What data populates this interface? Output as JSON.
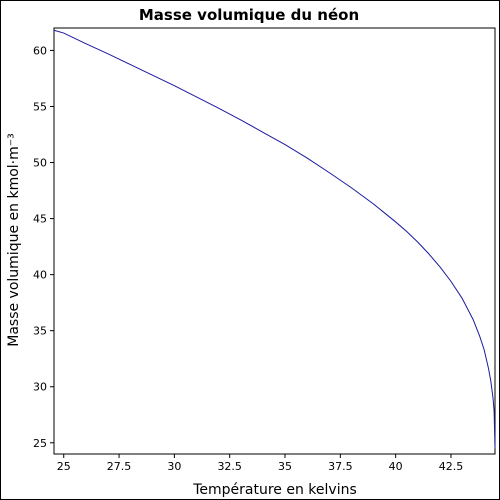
{
  "chart_data": {
    "type": "line",
    "title": "Masse volumique du néon",
    "xlabel": "Température en kelvins",
    "ylabel": "Masse volumique en kmol·m⁻³",
    "xlim": [
      24.56,
      44.49
    ],
    "ylim": [
      24.0,
      62.0
    ],
    "xticks": [
      25,
      27.5,
      30,
      32.5,
      35,
      37.5,
      40,
      42.5
    ],
    "xtick_labels": [
      "25",
      "27.5",
      "30",
      "32.5",
      "35",
      "37.5",
      "40",
      "42.5"
    ],
    "yticks": [
      25,
      30,
      35,
      40,
      45,
      50,
      55,
      60
    ],
    "ytick_labels": [
      "25",
      "30",
      "35",
      "40",
      "45",
      "50",
      "55",
      "60"
    ],
    "grid": false,
    "colors": {
      "line": "#1a1a9e",
      "axes": "#000000"
    },
    "series": [
      {
        "x": [
          24.56,
          25,
          26,
          27,
          28,
          29,
          30,
          31,
          32,
          33,
          34,
          35,
          36,
          37,
          38,
          39,
          40,
          40.5,
          41,
          41.5,
          42,
          42.5,
          43,
          43.5,
          43.8,
          44.0,
          44.2,
          44.3,
          44.4,
          44.45,
          44.49
        ],
        "y": [
          61.8,
          61.55,
          60.6,
          59.7,
          58.75,
          57.8,
          56.85,
          55.85,
          54.85,
          53.8,
          52.7,
          51.6,
          50.4,
          49.1,
          47.75,
          46.3,
          44.7,
          43.85,
          42.9,
          41.85,
          40.7,
          39.4,
          37.9,
          36.0,
          34.5,
          33.3,
          31.6,
          30.5,
          29.0,
          27.8,
          24.5
        ]
      }
    ]
  }
}
